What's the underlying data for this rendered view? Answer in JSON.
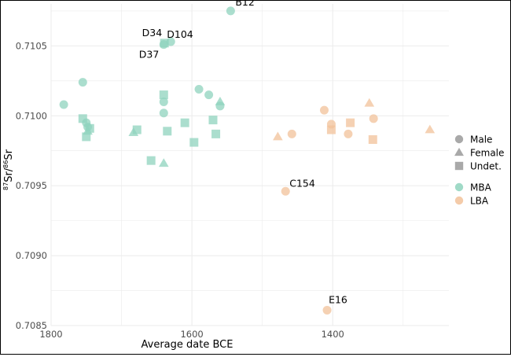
{
  "chart_data": {
    "type": "scatter",
    "title": "",
    "xlabel": "Average date BCE",
    "ylabel": "87Sr/86Sr",
    "ylabel_parts": {
      "pre_sup": "87",
      "mid": "Sr/",
      "post_sup": "86",
      "tail": "Sr"
    },
    "xlim": [
      1800,
      1235
    ],
    "x_direction": "descending",
    "ylim": [
      0.7085,
      0.7108
    ],
    "x_ticks": [
      1800,
      1600,
      1400
    ],
    "x_tick_labels": [
      "1800",
      "1600",
      "1400"
    ],
    "y_ticks": [
      0.7085,
      0.709,
      0.7095,
      0.71,
      0.7105
    ],
    "y_tick_labels": [
      "0.7085",
      "0.7090",
      "0.7095",
      "0.7100",
      "0.7105"
    ],
    "grid": true,
    "legend": {
      "placement": "right",
      "shape_entries": [
        {
          "shape": "circle",
          "label": "Male"
        },
        {
          "shape": "triangle",
          "label": "Female"
        },
        {
          "shape": "square",
          "label": "Undet."
        }
      ],
      "color_entries": [
        {
          "group": "MBA",
          "label": "MBA",
          "color": "#8fd3bd"
        },
        {
          "group": "LBA",
          "label": "LBA",
          "color": "#f2c29a"
        }
      ]
    },
    "colors": {
      "MBA": "#8fd3bd",
      "LBA": "#f2c29a",
      "axis_text": "#4d4d4d",
      "grid": "#ebebeb"
    },
    "points": [
      {
        "x": 1782,
        "y": 0.71008,
        "shape": "circle",
        "group": "MBA"
      },
      {
        "x": 1755,
        "y": 0.71024,
        "shape": "circle",
        "group": "MBA"
      },
      {
        "x": 1750,
        "y": 0.70995,
        "shape": "circle",
        "group": "MBA"
      },
      {
        "x": 1748,
        "y": 0.70992,
        "shape": "circle",
        "group": "MBA"
      },
      {
        "x": 1755,
        "y": 0.70998,
        "shape": "square",
        "group": "MBA"
      },
      {
        "x": 1750,
        "y": 0.70985,
        "shape": "square",
        "group": "MBA"
      },
      {
        "x": 1745,
        "y": 0.70991,
        "shape": "square",
        "group": "MBA"
      },
      {
        "x": 1748,
        "y": 0.70989,
        "shape": "triangle",
        "group": "MBA"
      },
      {
        "x": 1683,
        "y": 0.70988,
        "shape": "triangle",
        "group": "MBA"
      },
      {
        "x": 1678,
        "y": 0.7099,
        "shape": "square",
        "group": "MBA"
      },
      {
        "x": 1658,
        "y": 0.70968,
        "shape": "square",
        "group": "MBA"
      },
      {
        "x": 1640,
        "y": 0.70966,
        "shape": "triangle",
        "group": "MBA"
      },
      {
        "x": 1640,
        "y": 0.71015,
        "shape": "square",
        "group": "MBA"
      },
      {
        "x": 1640,
        "y": 0.7101,
        "shape": "circle",
        "group": "MBA"
      },
      {
        "x": 1640,
        "y": 0.71002,
        "shape": "circle",
        "group": "MBA"
      },
      {
        "x": 1635,
        "y": 0.70989,
        "shape": "square",
        "group": "MBA"
      },
      {
        "x": 1610,
        "y": 0.70995,
        "shape": "square",
        "group": "MBA"
      },
      {
        "x": 1597,
        "y": 0.70981,
        "shape": "square",
        "group": "MBA"
      },
      {
        "x": 1590,
        "y": 0.71019,
        "shape": "circle",
        "group": "MBA"
      },
      {
        "x": 1576,
        "y": 0.71015,
        "shape": "circle",
        "group": "MBA"
      },
      {
        "x": 1570,
        "y": 0.70997,
        "shape": "square",
        "group": "MBA"
      },
      {
        "x": 1566,
        "y": 0.70987,
        "shape": "square",
        "group": "MBA"
      },
      {
        "x": 1560,
        "y": 0.7101,
        "shape": "triangle",
        "group": "MBA"
      },
      {
        "x": 1560,
        "y": 0.71007,
        "shape": "circle",
        "group": "MBA"
      },
      {
        "x": 1640,
        "y": 0.71051,
        "shape": "circle",
        "group": "MBA",
        "label": "D37"
      },
      {
        "x": 1639,
        "y": 0.71052,
        "shape": "square",
        "group": "MBA",
        "label": "D34"
      },
      {
        "x": 1630,
        "y": 0.71053,
        "shape": "circle",
        "group": "MBA",
        "label": "D104"
      },
      {
        "x": 1545,
        "y": 0.71075,
        "shape": "circle",
        "group": "MBA",
        "label": "B12"
      },
      {
        "x": 1478,
        "y": 0.70985,
        "shape": "triangle",
        "group": "LBA"
      },
      {
        "x": 1458,
        "y": 0.70987,
        "shape": "circle",
        "group": "LBA"
      },
      {
        "x": 1467,
        "y": 0.70946,
        "shape": "circle",
        "group": "LBA",
        "label": "C154"
      },
      {
        "x": 1412,
        "y": 0.71004,
        "shape": "circle",
        "group": "LBA"
      },
      {
        "x": 1402,
        "y": 0.70994,
        "shape": "circle",
        "group": "LBA"
      },
      {
        "x": 1402,
        "y": 0.7099,
        "shape": "square",
        "group": "LBA"
      },
      {
        "x": 1375,
        "y": 0.70995,
        "shape": "square",
        "group": "LBA"
      },
      {
        "x": 1378,
        "y": 0.70987,
        "shape": "circle",
        "group": "LBA"
      },
      {
        "x": 1348,
        "y": 0.71009,
        "shape": "triangle",
        "group": "LBA"
      },
      {
        "x": 1342,
        "y": 0.70998,
        "shape": "circle",
        "group": "LBA"
      },
      {
        "x": 1343,
        "y": 0.70983,
        "shape": "square",
        "group": "LBA"
      },
      {
        "x": 1262,
        "y": 0.7099,
        "shape": "triangle",
        "group": "LBA"
      },
      {
        "x": 1408,
        "y": 0.70861,
        "shape": "circle",
        "group": "LBA",
        "label": "E16"
      }
    ]
  }
}
